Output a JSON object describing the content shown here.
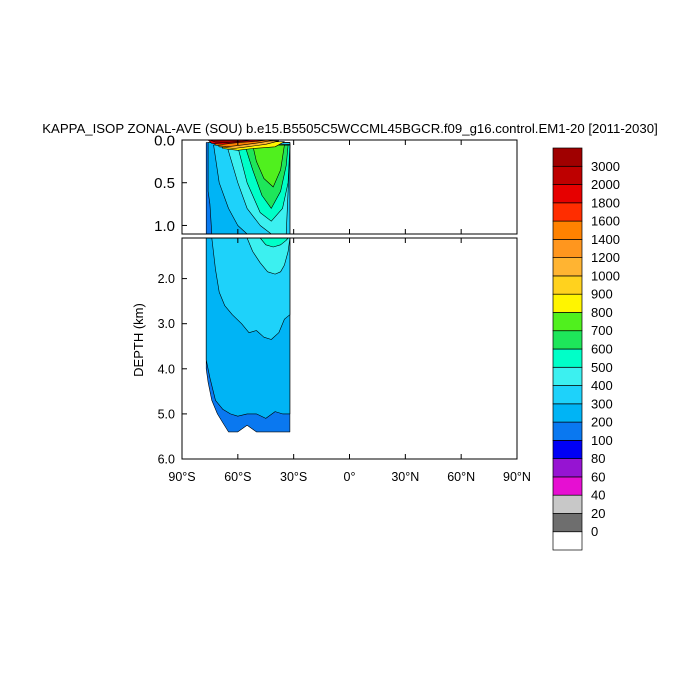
{
  "chart_data": {
    "type": "heatmap",
    "title": "KAPPA_ISOP ZONAL-AVE (SOU) b.e15.B5505C5WCCML45BGCR.f09_g16.control.EM1-20 [2011-2030]",
    "xlabel": "",
    "ylabel": "DEPTH (km)",
    "x_ticks": [
      "90°S",
      "60°S",
      "30°S",
      "0°",
      "30°N",
      "60°N",
      "90°N"
    ],
    "x_tick_values": [
      -90,
      -60,
      -30,
      0,
      30,
      60,
      90
    ],
    "xlim": [
      -90,
      90
    ],
    "upper_panel": {
      "ylim": [
        0,
        1.1
      ],
      "y_ticks": [
        "0.0",
        "0.5",
        "1.0"
      ],
      "y_tick_values": [
        0,
        0.5,
        1.0
      ]
    },
    "lower_panel": {
      "ylim": [
        1.1,
        6.0
      ],
      "y_ticks": [
        "2.0",
        "3.0",
        "4.0",
        "5.0",
        "6.0"
      ],
      "y_tick_values": [
        2,
        3,
        4,
        5,
        6
      ]
    },
    "colorbar": {
      "levels": [
        "0",
        "20",
        "40",
        "60",
        "80",
        "100",
        "200",
        "300",
        "400",
        "500",
        "600",
        "700",
        "800",
        "900",
        "1000",
        "1200",
        "1400",
        "1600",
        "1800",
        "2000",
        "3000"
      ],
      "colors": [
        "#ffffff",
        "#6e6e6e",
        "#c8c8c8",
        "#e60fd2",
        "#9614d2",
        "#0000f5",
        "#0a78f0",
        "#00b4f5",
        "#1ed2fa",
        "#3cf0f0",
        "#00ffc8",
        "#1ee65a",
        "#50f01e",
        "#fff500",
        "#ffd21e",
        "#ffb432",
        "#ff961e",
        "#ff8200",
        "#ff2d00",
        "#e60000",
        "#be0000",
        "#a00000"
      ]
    },
    "contours_upper": [
      {
        "level": 200,
        "color": "#0a78f0",
        "points": [
          [
            -77,
            0.03
          ],
          [
            -77,
            1.1
          ],
          [
            -32,
            1.1
          ],
          [
            -32,
            0.03
          ]
        ]
      },
      {
        "level": 300,
        "color": "#00b4f5",
        "points": [
          [
            -76,
            0.03
          ],
          [
            -76,
            0.6
          ],
          [
            -75,
            0.75
          ],
          [
            -74,
            1.1
          ],
          [
            -32,
            1.1
          ],
          [
            -32,
            0.03
          ]
        ]
      },
      {
        "level": 400,
        "color": "#1ed2fa",
        "points": [
          [
            -73,
            0.06
          ],
          [
            -70,
            0.5
          ],
          [
            -65,
            0.8
          ],
          [
            -60,
            1.0
          ],
          [
            -55,
            1.1
          ],
          [
            -32,
            1.1
          ],
          [
            -32,
            0.03
          ]
        ]
      },
      {
        "level": 500,
        "color": "#3cf0f0",
        "points": [
          [
            -66,
            0.06
          ],
          [
            -60,
            0.5
          ],
          [
            -55,
            0.8
          ],
          [
            -48,
            1.0
          ],
          [
            -42,
            1.1
          ],
          [
            -34,
            1.1
          ],
          [
            -33,
            0.6
          ],
          [
            -32,
            0.05
          ]
        ]
      },
      {
        "level": 600,
        "color": "#00ffc8",
        "points": [
          [
            -60,
            0.08
          ],
          [
            -55,
            0.5
          ],
          [
            -48,
            0.85
          ],
          [
            -42,
            0.95
          ],
          [
            -36,
            0.8
          ],
          [
            -33,
            0.5
          ],
          [
            -32,
            0.06
          ]
        ]
      },
      {
        "level": 700,
        "color": "#1ee65a",
        "points": [
          [
            -56,
            0.08
          ],
          [
            -52,
            0.35
          ],
          [
            -47,
            0.65
          ],
          [
            -42,
            0.8
          ],
          [
            -37,
            0.6
          ],
          [
            -34,
            0.3
          ],
          [
            -33,
            0.06
          ]
        ]
      },
      {
        "level": 800,
        "color": "#50f01e",
        "points": [
          [
            -52,
            0.06
          ],
          [
            -50,
            0.25
          ],
          [
            -46,
            0.45
          ],
          [
            -41,
            0.55
          ],
          [
            -37,
            0.35
          ],
          [
            -35,
            0.06
          ]
        ]
      },
      {
        "level": 900,
        "color": "#fff500",
        "points": [
          [
            -70,
            0.02
          ],
          [
            -68,
            0.1
          ],
          [
            -60,
            0.12
          ],
          [
            -52,
            0.1
          ],
          [
            -40,
            0.08
          ],
          [
            -35,
            0.02
          ]
        ]
      },
      {
        "level": 1200,
        "color": "#ffb432",
        "points": [
          [
            -72,
            0.01
          ],
          [
            -70,
            0.08
          ],
          [
            -62,
            0.1
          ],
          [
            -55,
            0.08
          ],
          [
            -45,
            0.05
          ],
          [
            -38,
            0.01
          ]
        ]
      },
      {
        "level": 1600,
        "color": "#ff8200",
        "points": [
          [
            -74,
            0.0
          ],
          [
            -72,
            0.06
          ],
          [
            -66,
            0.08
          ],
          [
            -58,
            0.06
          ],
          [
            -48,
            0.03
          ],
          [
            -40,
            0.0
          ]
        ]
      },
      {
        "level": 2000,
        "color": "#e60000",
        "points": [
          [
            -76,
            0.0
          ],
          [
            -74,
            0.04
          ],
          [
            -68,
            0.05
          ],
          [
            -60,
            0.03
          ],
          [
            -50,
            0.015
          ],
          [
            -44,
            0.0
          ]
        ]
      },
      {
        "level": 3000,
        "color": "#a00000",
        "points": [
          [
            -75,
            0.0
          ],
          [
            -72,
            0.025
          ],
          [
            -66,
            0.03
          ],
          [
            -58,
            0.015
          ],
          [
            -52,
            0.0
          ]
        ]
      }
    ],
    "contours_lower": [
      {
        "level": 200,
        "color": "#0a78f0",
        "points": [
          [
            -77,
            1.1
          ],
          [
            -77,
            4.0
          ],
          [
            -76,
            4.3
          ],
          [
            -74,
            4.7
          ],
          [
            -71,
            5.0
          ],
          [
            -68,
            5.2
          ],
          [
            -65,
            5.4
          ],
          [
            -60,
            5.4
          ],
          [
            -55,
            5.25
          ],
          [
            -50,
            5.4
          ],
          [
            -32,
            5.4
          ],
          [
            -32,
            1.1
          ]
        ]
      },
      {
        "level": 300,
        "color": "#00b4f5",
        "points": [
          [
            -77,
            1.1
          ],
          [
            -77,
            3.8
          ],
          [
            -75,
            4.2
          ],
          [
            -72,
            4.7
          ],
          [
            -68,
            4.9
          ],
          [
            -64,
            5.0
          ],
          [
            -60,
            5.05
          ],
          [
            -55,
            5.0
          ],
          [
            -50,
            5.0
          ],
          [
            -45,
            5.1
          ],
          [
            -40,
            4.95
          ],
          [
            -36,
            5.0
          ],
          [
            -32,
            5.0
          ],
          [
            -32,
            1.1
          ]
        ]
      },
      {
        "level": 400,
        "color": "#1ed2fa",
        "points": [
          [
            -74,
            1.1
          ],
          [
            -72,
            1.8
          ],
          [
            -70,
            2.3
          ],
          [
            -67,
            2.6
          ],
          [
            -63,
            2.8
          ],
          [
            -58,
            3.0
          ],
          [
            -54,
            3.2
          ],
          [
            -50,
            3.15
          ],
          [
            -46,
            3.3
          ],
          [
            -42,
            3.35
          ],
          [
            -38,
            3.2
          ],
          [
            -35,
            2.9
          ],
          [
            -32,
            2.8
          ],
          [
            -32,
            1.1
          ]
        ]
      },
      {
        "level": 500,
        "color": "#3cf0f0",
        "points": [
          [
            -55,
            1.1
          ],
          [
            -52,
            1.4
          ],
          [
            -48,
            1.65
          ],
          [
            -44,
            1.85
          ],
          [
            -40,
            1.9
          ],
          [
            -37,
            1.85
          ],
          [
            -35,
            1.7
          ],
          [
            -33,
            1.4
          ],
          [
            -32,
            1.1
          ]
        ]
      },
      {
        "level": 600,
        "color": "#00ffc8",
        "points": [
          [
            -48,
            1.1
          ],
          [
            -45,
            1.25
          ],
          [
            -41,
            1.3
          ],
          [
            -37,
            1.25
          ],
          [
            -34,
            1.15
          ],
          [
            -33,
            1.1
          ]
        ]
      }
    ]
  }
}
